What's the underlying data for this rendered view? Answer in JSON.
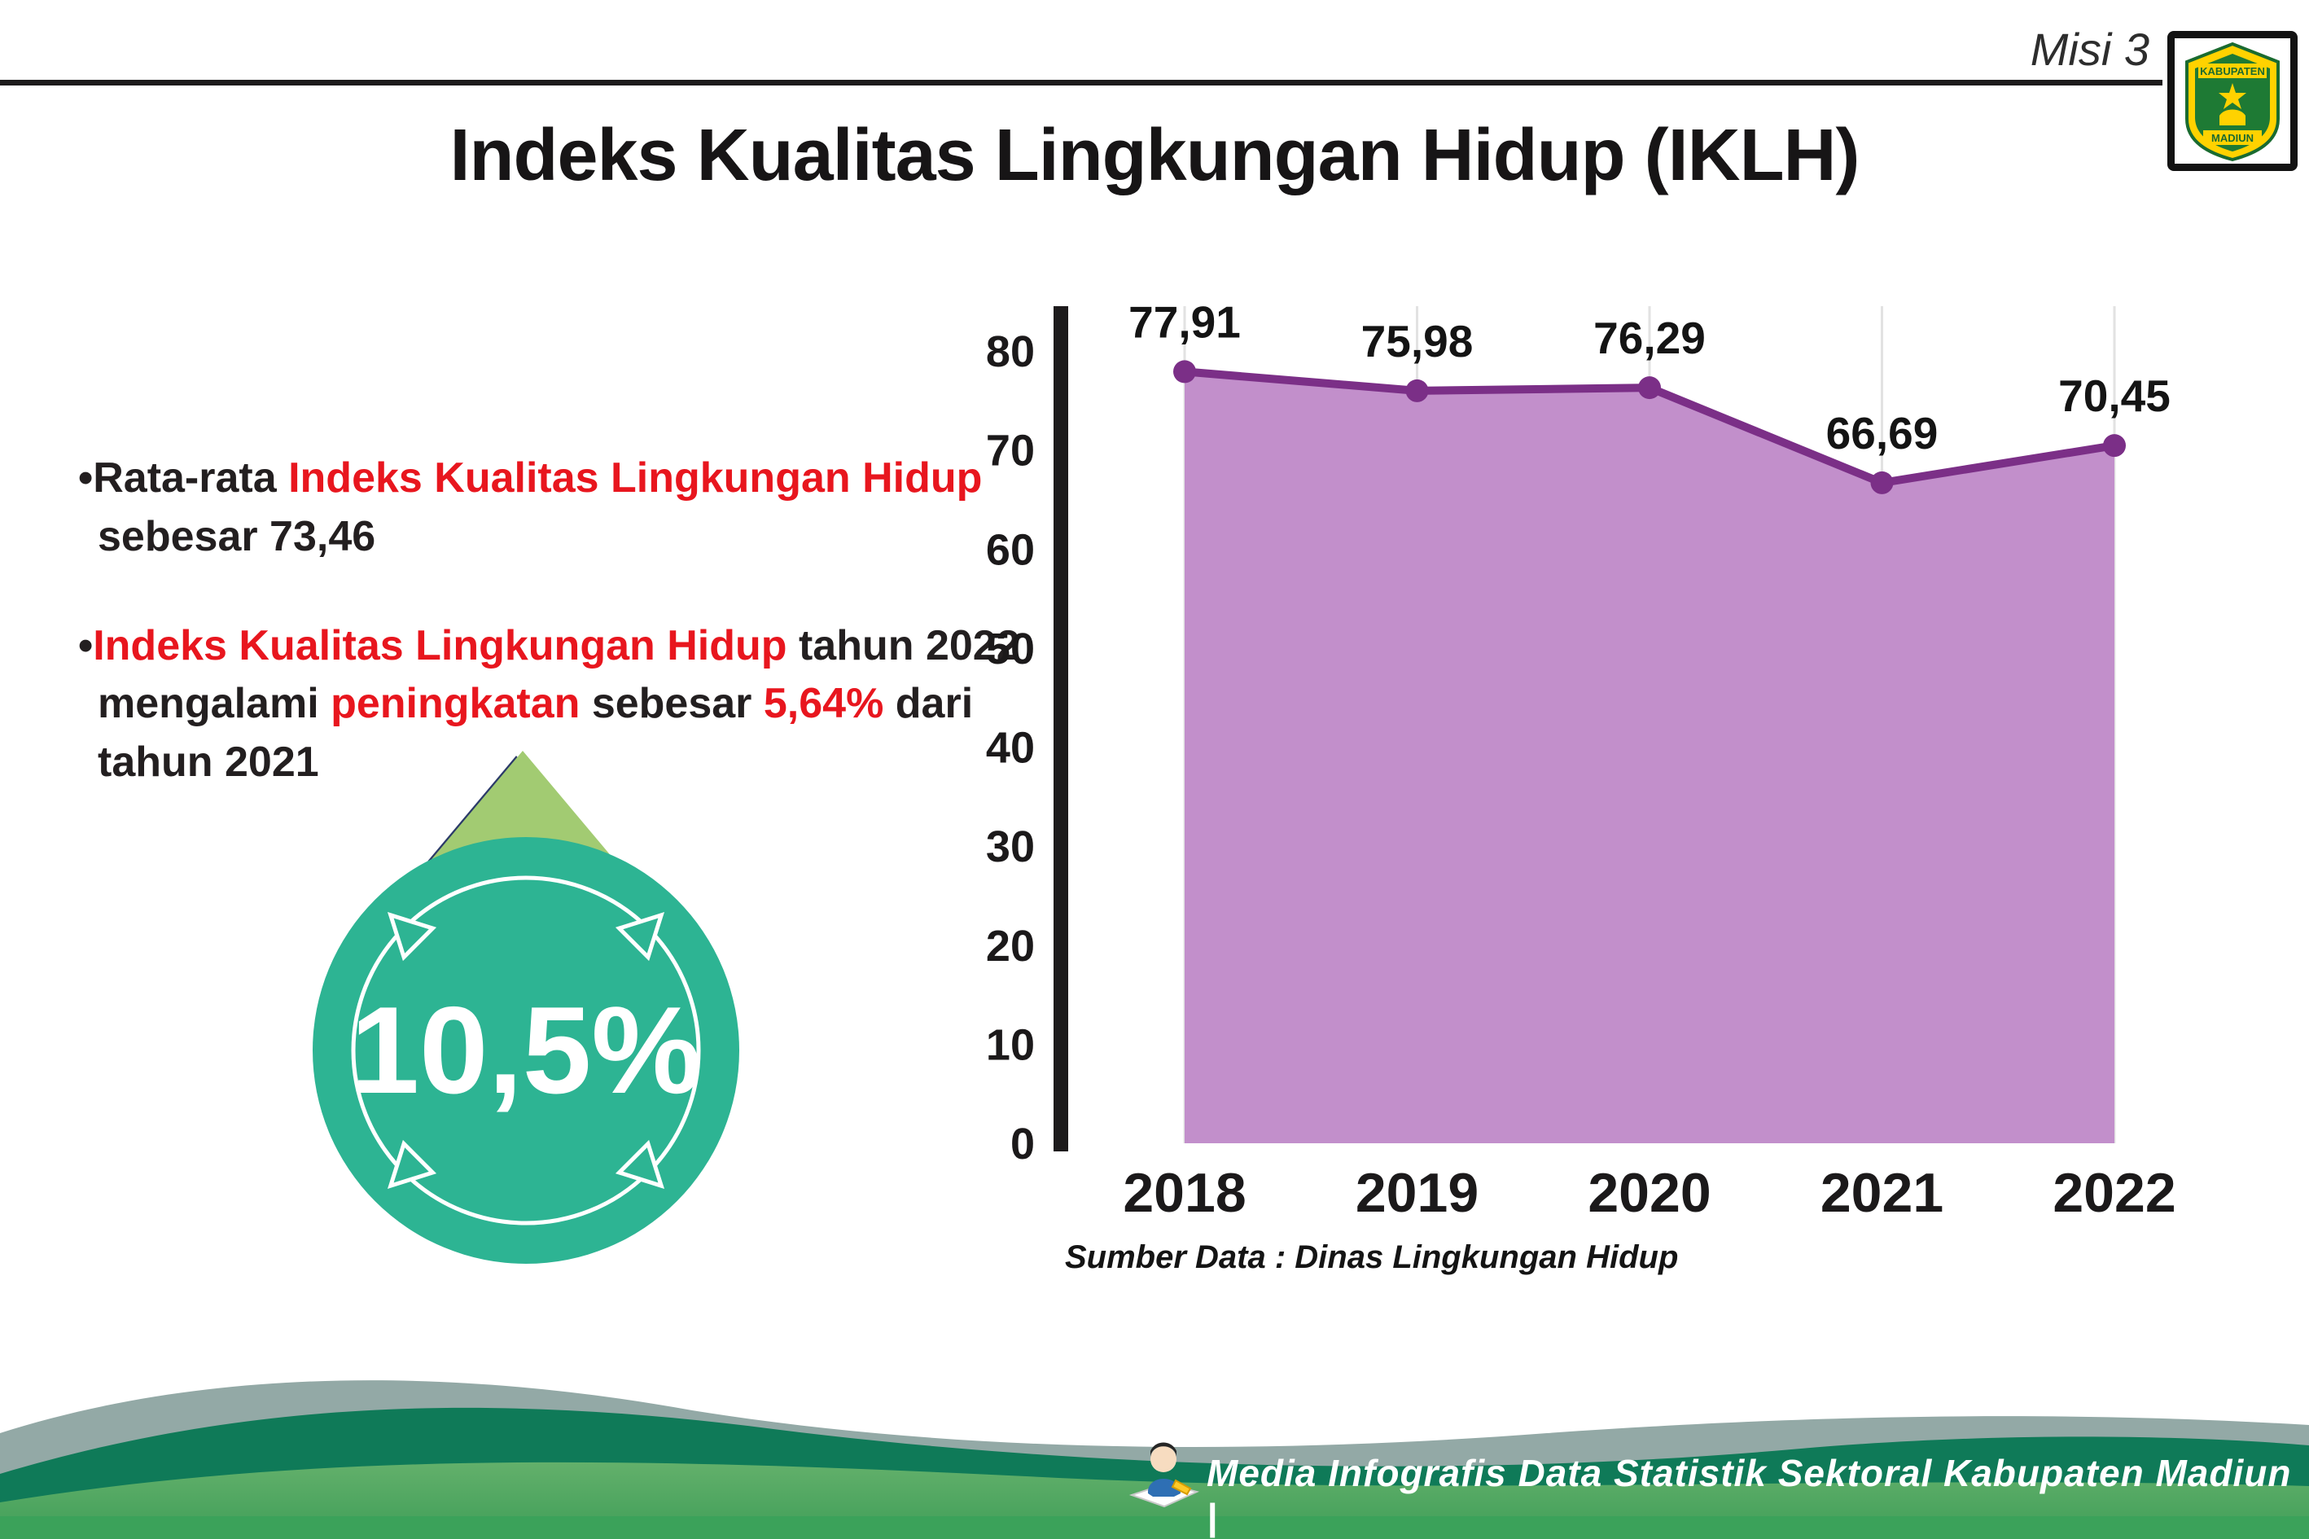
{
  "header": {
    "misi_label": "Misi 3",
    "title": "Indeks Kualitas Lingkungan Hidup (IKLH)"
  },
  "logo": {
    "top_text": "KABUPATEN",
    "bottom_text": "MADIUN"
  },
  "bullets": {
    "bullet1_lines": [
      [
        {
          "t": "•",
          "c": "dark"
        },
        {
          "t": "Rata-rata ",
          "c": "dark"
        },
        {
          "t": "Indeks Kualitas Lingkungan Hidup",
          "c": "red"
        }
      ],
      [
        {
          "t": "sebesar 73,46",
          "c": "dark"
        }
      ]
    ],
    "bullet2_lines": [
      [
        {
          "t": "•",
          "c": "dark"
        },
        {
          "t": "Indeks Kualitas Lingkungan Hidup",
          "c": "red"
        },
        {
          "t": " tahun 2022",
          "c": "dark"
        }
      ],
      [
        {
          "t": "mengalami ",
          "c": "dark"
        },
        {
          "t": "peningkatan",
          "c": "red"
        },
        {
          "t": " sebesar ",
          "c": "dark"
        },
        {
          "t": "5,64%",
          "c": "red"
        },
        {
          "t": " dari",
          "c": "dark"
        }
      ],
      [
        {
          "t": "tahun 2021",
          "c": "dark"
        }
      ]
    ]
  },
  "badge": {
    "value": "10,5%",
    "circle_color": "#2db493",
    "arrow_color": "#a2cb72",
    "arrow_shadow_color": "#2b3a69"
  },
  "chart_data": {
    "type": "area",
    "title": "Indeks Kualitas Lingkungan Hidup (IKLH)",
    "categories": [
      "2018",
      "2019",
      "2020",
      "2021",
      "2022"
    ],
    "values": [
      77.91,
      75.98,
      76.29,
      66.69,
      70.45
    ],
    "point_labels": [
      "77,91",
      "75,98",
      "76,29",
      "66,69",
      "70,45"
    ],
    "ylim": [
      0,
      80
    ],
    "yticks": [
      0,
      10,
      20,
      30,
      40,
      50,
      60,
      70,
      80
    ],
    "grid": true,
    "legend": "none",
    "line_color": "#7b2f87",
    "fill_color": "#c28fcb",
    "axis_color": "#1d1b1c",
    "source_note": "Sumber Data : Dinas Lingkungan Hidup"
  },
  "footer": {
    "text": "Media Infografis Data Statistik Sektoral Kabupaten Madiun |"
  }
}
